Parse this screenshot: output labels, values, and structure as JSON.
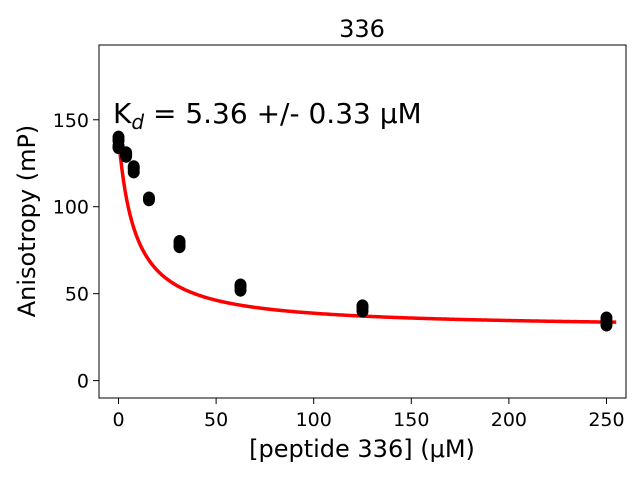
{
  "chart_data": {
    "type": "scatter",
    "title": "336",
    "xlabel": "[peptide 336] (μM)",
    "ylabel": "Anisotropy (mP)",
    "xlim": [
      -10,
      260
    ],
    "ylim": [
      -10,
      193
    ],
    "xticks": [
      0,
      50,
      100,
      150,
      200,
      250
    ],
    "yticks": [
      0,
      50,
      100,
      150
    ],
    "grid": false,
    "annotation": {
      "prefix": "K",
      "subscript": "d",
      "rest": " = 5.36 +/- 0.33 μM"
    },
    "series": [
      {
        "values": [
          [
            0,
            140
          ],
          [
            0,
            138
          ],
          [
            0,
            135
          ],
          [
            0,
            134
          ],
          [
            3.9,
            131
          ],
          [
            3.9,
            130
          ],
          [
            3.9,
            129
          ],
          [
            7.8,
            123
          ],
          [
            7.8,
            122
          ],
          [
            7.8,
            120
          ],
          [
            15.6,
            105
          ],
          [
            15.6,
            104
          ],
          [
            31.25,
            80
          ],
          [
            31.25,
            78
          ],
          [
            31.25,
            77
          ],
          [
            62.5,
            55
          ],
          [
            62.5,
            54
          ],
          [
            62.5,
            52
          ],
          [
            125,
            43
          ],
          [
            125,
            42
          ],
          [
            125,
            40
          ],
          [
            250,
            36
          ],
          [
            250,
            34
          ],
          [
            250,
            32
          ]
        ],
        "color": "#000000"
      },
      {
        "type": "line",
        "fit": {
          "model": "hyperbolic_decay",
          "kd": 5.36,
          "top": 140,
          "bottom": 30,
          "x_range": [
            0,
            255
          ]
        },
        "color": "#ff0000"
      }
    ]
  }
}
